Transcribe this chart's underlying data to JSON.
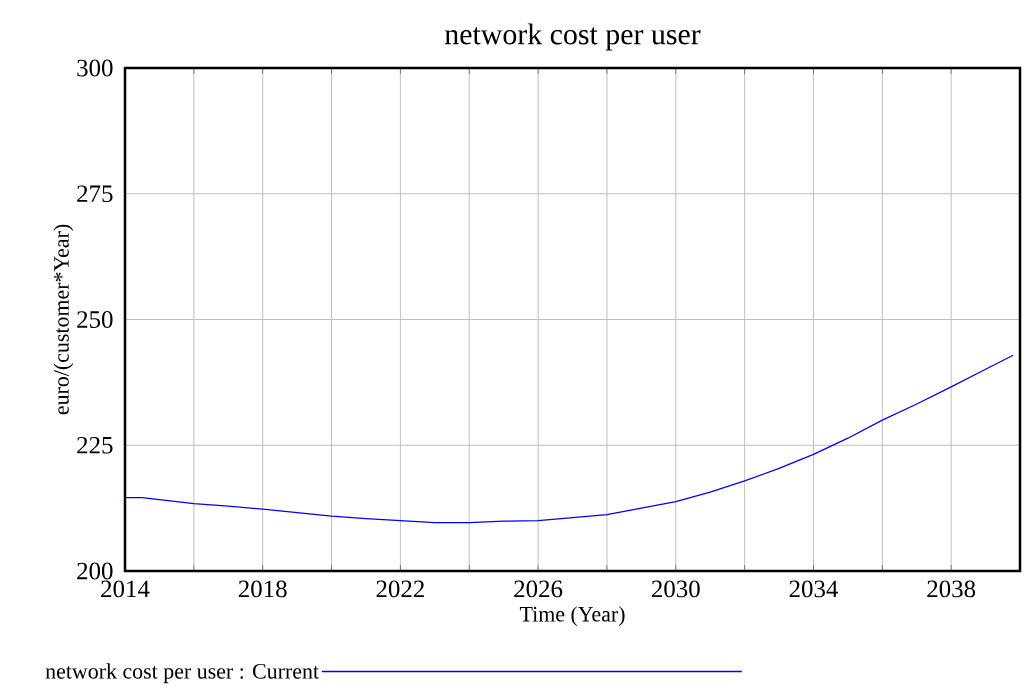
{
  "chart_data": {
    "type": "line",
    "title": "network cost per user",
    "xlabel": "Time (Year)",
    "ylabel": "euro/(customer*Year)",
    "x": [
      2014,
      2014.5,
      2015,
      2016,
      2017,
      2018,
      2019,
      2020,
      2021,
      2022,
      2023,
      2024,
      2025,
      2026,
      2027,
      2028,
      2029,
      2030,
      2031,
      2032,
      2033,
      2034,
      2035,
      2036,
      2037,
      2038,
      2039,
      2039.8
    ],
    "series": [
      {
        "name": "network cost per user : Current",
        "color": "#0000ff",
        "values": [
          214.6,
          214.6,
          214.2,
          213.4,
          212.9,
          212.3,
          211.6,
          210.9,
          210.4,
          210.0,
          209.6,
          209.6,
          209.9,
          210.0,
          210.6,
          211.2,
          212.5,
          213.8,
          215.7,
          217.9,
          220.4,
          223.2,
          226.4,
          230.0,
          233.2,
          236.6,
          240.1,
          242.9
        ]
      }
    ],
    "xlim": [
      2014,
      2040
    ],
    "ylim": [
      200,
      300
    ],
    "xticks": [
      2014,
      {
        "value": 2016,
        "label": null
      },
      2018,
      {
        "value": 2020,
        "label": null
      },
      2022,
      {
        "value": 2024,
        "label": null
      },
      2026,
      {
        "value": 2028,
        "label": null
      },
      2030,
      {
        "value": 2032,
        "label": null
      },
      2034,
      {
        "value": 2036,
        "label": null
      },
      2038,
      {
        "value": 2040,
        "label": null
      }
    ],
    "yticks": [
      200,
      225,
      250,
      275,
      300
    ],
    "grid": true,
    "legend": "bottom"
  }
}
